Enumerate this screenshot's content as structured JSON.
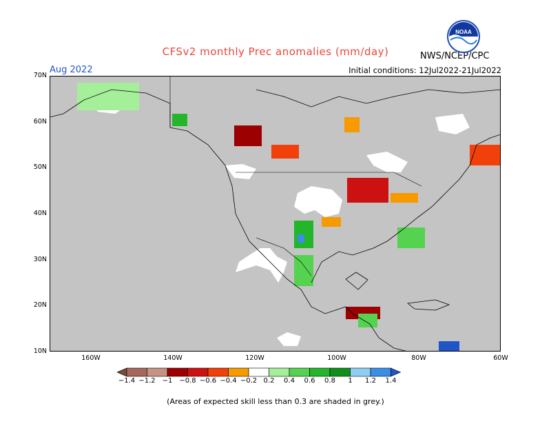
{
  "title": "CFSv2 monthly Prec anomalies (mm/day)",
  "agency": "NWS/NCEP/CPC",
  "logo_text": "NOAA",
  "month_label": "Aug 2022",
  "initial_conditions": "Initial conditions: 12Jul2022-21Jul2022",
  "lat_labels": [
    "70N",
    "60N",
    "50N",
    "40N",
    "30N",
    "20N",
    "10N"
  ],
  "lon_labels": [
    "160W",
    "140W",
    "120W",
    "100W",
    "80W",
    "60W"
  ],
  "colorbar": {
    "labels": [
      "−1.4",
      "−1.2",
      "−1",
      "−0.8",
      "−0.6",
      "−0.4",
      "−0.2",
      "0.2",
      "0.4",
      "0.6",
      "0.8",
      "1",
      "1.2",
      "1.4"
    ],
    "colors": [
      "#7a4b3a",
      "#a5685a",
      "#c69383",
      "#9c0000",
      "#cc1111",
      "#f2400a",
      "#f79a00",
      "#ffffff",
      "#a6ef9a",
      "#54d250",
      "#23b52a",
      "#10901b",
      "#8fcdf3",
      "#3a8ee6",
      "#1f55c8"
    ],
    "grey_color": "#c4c4c4"
  },
  "footnote": "(Areas of expected skill less than 0.3 are shaded in grey.)"
}
